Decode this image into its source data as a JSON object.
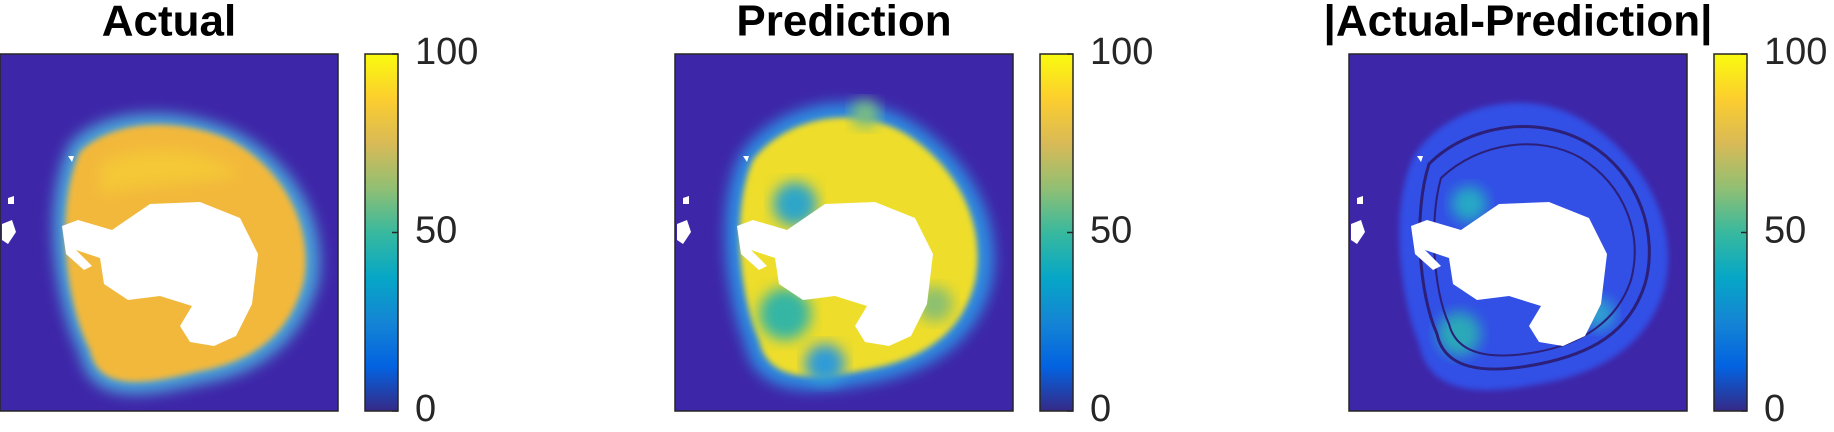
{
  "chart_data": [
    {
      "type": "heatmap",
      "title": "Actual",
      "colormap": "parula",
      "clim": [
        0,
        100
      ],
      "cticks": [
        0,
        50,
        100
      ]
    },
    {
      "type": "heatmap",
      "title": "Prediction",
      "colormap": "parula",
      "clim": [
        0,
        100
      ],
      "cticks": [
        0,
        50,
        100
      ]
    },
    {
      "type": "heatmap",
      "title": "|Actual-Prediction|",
      "colormap": "parula",
      "clim": [
        0,
        100
      ],
      "cticks": [
        0,
        50,
        100
      ]
    }
  ]
}
